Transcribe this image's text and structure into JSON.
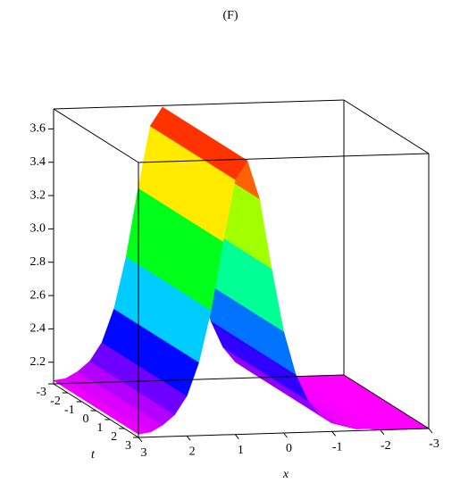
{
  "chart_data": {
    "type": "surface",
    "title": "(F)",
    "x": [
      -3,
      -2.75,
      -2.5,
      -2.25,
      -2,
      -1.75,
      -1.5,
      -1.25,
      -1,
      -0.75,
      -0.5,
      -0.25,
      0,
      0.25,
      0.5,
      0.75,
      1,
      1.25,
      1.5,
      1.75,
      2,
      2.25,
      2.5,
      2.75,
      3
    ],
    "z": [
      2.07,
      2.07,
      2.07,
      2.07,
      2.07,
      2.08,
      2.08,
      2.1,
      2.12,
      2.17,
      2.26,
      2.42,
      2.68,
      3.06,
      3.48,
      3.71,
      3.6,
      3.23,
      2.82,
      2.51,
      2.31,
      2.2,
      2.14,
      2.1,
      2.09
    ],
    "xlim": [
      -3,
      3
    ],
    "tlim": [
      -3,
      3
    ],
    "zlim": [
      2.07,
      3.72
    ],
    "xticks": [
      3,
      2,
      1,
      0,
      -1,
      -2,
      -3
    ],
    "tticks": [
      -3,
      -2,
      -1,
      0,
      1,
      2,
      3
    ],
    "zticks": [
      2.2,
      2.4,
      2.6,
      2.8,
      {
        "value": 3,
        "label": "3.0"
      },
      3.2,
      3.4,
      3.6
    ],
    "xlabel": "x",
    "tlabel": "t"
  }
}
